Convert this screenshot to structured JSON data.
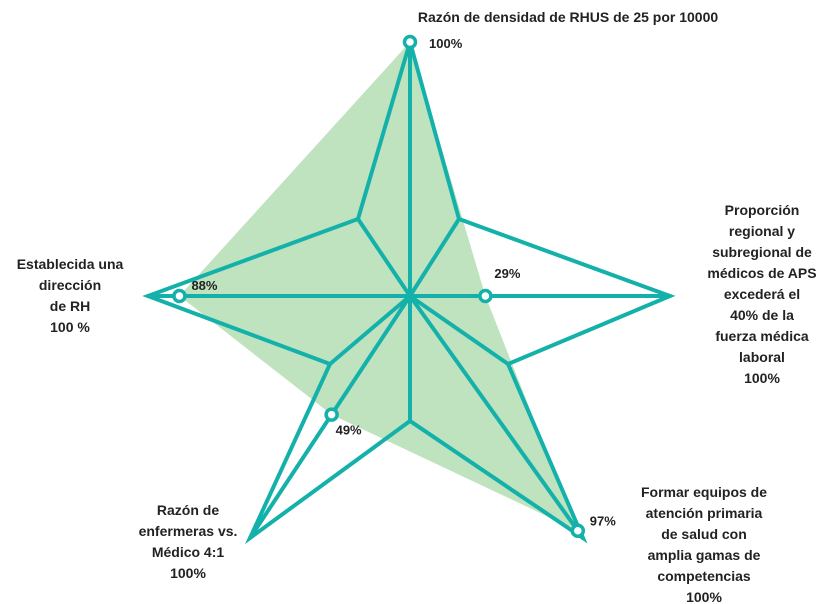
{
  "chart_data": {
    "type": "radar",
    "max": 100,
    "axes": [
      {
        "label": [
          "Razón de densidad de RHUS de 25 por 10000"
        ],
        "value": 100,
        "value_label": "100%"
      },
      {
        "label": [
          "Proporción",
          "regional y",
          "subregional de",
          "médicos de APS",
          "excederá el",
          "40% de la",
          "fuerza médica",
          "laboral",
          "100%"
        ],
        "value": 29,
        "value_label": "29%"
      },
      {
        "label": [
          "Formar equipos de",
          "atención primaria",
          "de salud con",
          "amplia gamas de",
          "competencias",
          "100%"
        ],
        "value": 97,
        "value_label": "97%"
      },
      {
        "label": [
          "Razón de",
          "enfermeras vs.",
          "Médico 4:1",
          "100%"
        ],
        "value": 49,
        "value_label": "49%"
      },
      {
        "label": [
          "Establecida una",
          "dirección",
          "de RH",
          "100 %"
        ],
        "value": 88,
        "value_label": "88%"
      }
    ],
    "colors": {
      "outline": "#14b1ab",
      "fill": "#bfe2bf",
      "marker_fill": "#ffffff"
    }
  }
}
